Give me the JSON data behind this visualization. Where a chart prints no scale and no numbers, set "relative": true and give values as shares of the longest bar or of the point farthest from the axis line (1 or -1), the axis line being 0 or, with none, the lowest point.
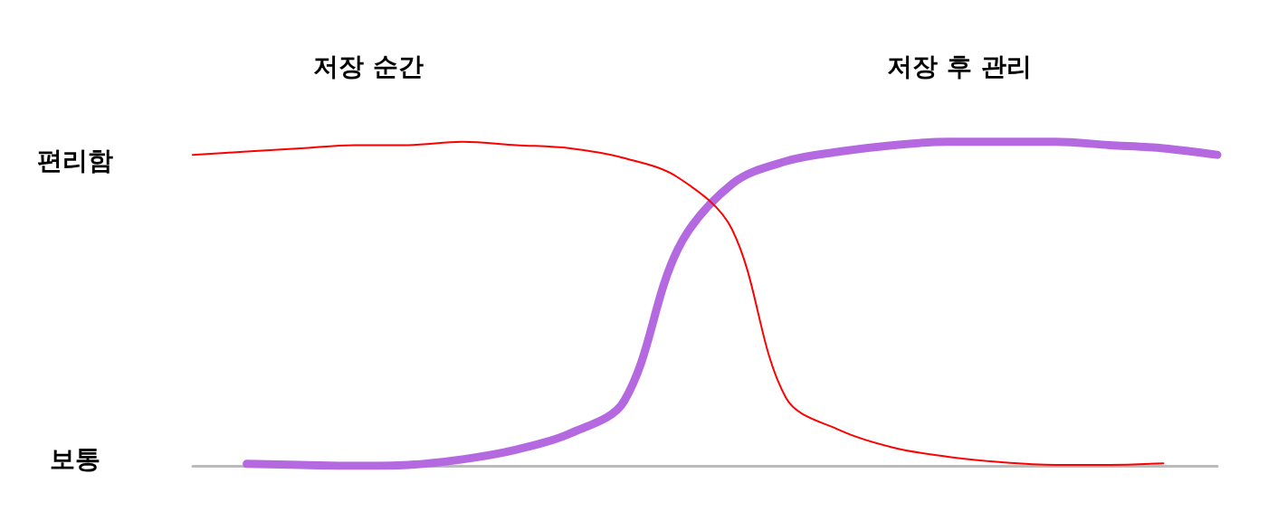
{
  "chart_data": {
    "type": "line",
    "relative": true,
    "categories": [
      null,
      null,
      null,
      null,
      null,
      null,
      null,
      null,
      null,
      null,
      null,
      null,
      null,
      null,
      null,
      null,
      null,
      null,
      null,
      null
    ],
    "annotations": [
      "저장 순간",
      "저장 후 관리",
      "편리함",
      "보통"
    ],
    "series": [
      {
        "color": "#ff0000",
        "values": [
          0.96,
          0.97,
          0.98,
          0.99,
          0.99,
          1.0,
          0.99,
          0.98,
          0.95,
          0.89,
          0.73,
          0.21,
          0.11,
          0.056,
          0.028,
          0.011,
          0.003,
          0.003,
          0.008,
          null
        ]
      },
      {
        "color": "#b469e0",
        "values": [
          null,
          0.006,
          0.003,
          0,
          0.003,
          0.02,
          0.05,
          0.1,
          0.2,
          0.67,
          0.87,
          0.94,
          0.97,
          0.99,
          1.0,
          1.0,
          1.0,
          0.99,
          0.98,
          0.96
        ]
      }
    ],
    "grid": false,
    "marker": "none",
    "line_style": "solid"
  }
}
